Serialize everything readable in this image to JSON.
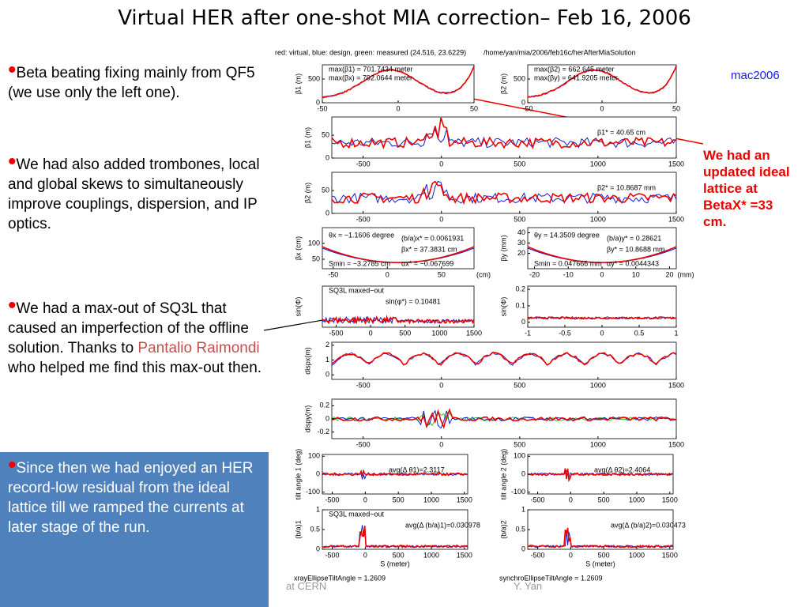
{
  "title": "Virtual HER after one-shot MIA correction– Feb 16, 2006",
  "bullets": [
    {
      "text": "Beta beating fixing mainly from QF5 (we use only the left one)."
    },
    {
      "text": "We had also added trombones, local and global skews to simultaneously improve couplings, dispersion, and IP optics."
    },
    {
      "text": "We had a max-out of SQ3L that caused an imperfection of the offline solution. Thanks to ",
      "name": "Pantalio Raimondi",
      "after": " who helped me find this max-out then."
    }
  ],
  "box_text": "Since then we had enjoyed an HER record-low residual from the ideal lattice till we ramped the currents at later stage of the run.",
  "side_note": "We had an updated ideal lattice at BetaX* =33 cm.",
  "tag": "mac2006",
  "footer": [
    "at CERN",
    "Y. Yan"
  ],
  "figure": {
    "header": "red: virtual, blue: design, green: measured  (24.516, 23.6229)",
    "path": "/home/yan/mia/2006/feb16c/herAfterMiaSolution",
    "panels": [
      {
        "ylabel": "β1 (m)",
        "xlim": [
          -50,
          50
        ],
        "xticks": [
          -50,
          0,
          50
        ],
        "ylim": [
          0,
          800
        ],
        "yticks": [
          0,
          500
        ],
        "notes": [
          "max(β1) = 701.7434 meter",
          "max(βx) = 792.0644 meter"
        ]
      },
      {
        "ylabel": "β2 (m)",
        "xlim": [
          -50,
          50
        ],
        "xticks": [
          -50,
          0,
          50
        ],
        "ylim": [
          0,
          800
        ],
        "yticks": [
          0,
          500
        ],
        "notes": [
          "max(β2) = 662.645 meter",
          "max(βy) = 641.9205 meter"
        ]
      },
      {
        "ylabel": "β1 (m)",
        "xlim": [
          -700,
          1500
        ],
        "xticks": [
          -500,
          0,
          500,
          1000,
          1500
        ],
        "ylim": [
          0,
          90
        ],
        "yticks": [
          0,
          50
        ],
        "notes": [
          "β1* = 40.65 cm"
        ]
      },
      {
        "ylabel": "β2 (m)",
        "xlim": [
          -700,
          1500
        ],
        "xticks": [
          -500,
          0,
          500,
          1000,
          1500
        ],
        "ylim": [
          0,
          90
        ],
        "yticks": [
          0,
          50
        ],
        "notes": [
          "β2* = 10.8687 mm"
        ]
      },
      {
        "ylabel": "βx (cm)",
        "xlim": [
          -60,
          80
        ],
        "xticks": [
          -50,
          0,
          50
        ],
        "xlabel": "(cm)",
        "ylim": [
          20,
          150
        ],
        "yticks": [
          50,
          100
        ],
        "notes": [
          "θx = −1.1606 degree",
          "(b/a)x* = 0.0061931",
          "βx* = 37.3831 cm",
          "Smin = −3.2785 cm",
          "αx* = −0.067699"
        ]
      },
      {
        "ylabel": "βy (mm)",
        "xlim": [
          -22,
          22
        ],
        "xticks": [
          -20,
          -10,
          0,
          10,
          20
        ],
        "xlabel": "(mm)",
        "ylim": [
          5,
          45
        ],
        "yticks": [
          20,
          30,
          40
        ],
        "notes": [
          "θy = 14.3509 degree",
          "(b/a)y* = 0.28621",
          "βy* = 10.8688 mm",
          "Smin = 0.047666 mm",
          "αy* = 0.0044343"
        ]
      },
      {
        "ylabel": "sin(Φ)",
        "xlim": [
          -700,
          1500
        ],
        "xticks": [
          -500,
          0,
          500,
          1000,
          1500
        ],
        "ylim": [
          0,
          0.2
        ],
        "yticks": [],
        "notes": [
          "SQ3L maxed−out",
          "sin(φ*) = 0.10481"
        ]
      },
      {
        "ylabel": "sin(Φ)",
        "xlim": [
          -1,
          1
        ],
        "xticks": [
          -1,
          -0.5,
          0,
          0.5,
          1
        ],
        "ylim": [
          -0.03,
          0.22
        ],
        "yticks": [
          0,
          0.1,
          0.2
        ],
        "notes": []
      },
      {
        "ylabel": "dispx(m)",
        "xlim": [
          -700,
          1500
        ],
        "xticks": [
          -500,
          0,
          500,
          1000,
          1500
        ],
        "ylim": [
          -0.3,
          2.2
        ],
        "yticks": [
          0,
          1,
          2
        ],
        "notes": []
      },
      {
        "ylabel": "dispy(m)",
        "xlim": [
          -700,
          1500
        ],
        "xticks": [
          -500,
          0,
          500,
          1000,
          1500
        ],
        "ylim": [
          -0.3,
          0.3
        ],
        "yticks": [
          -0.2,
          0,
          0.2
        ],
        "notes": []
      },
      {
        "ylabel": "tilt angle 1 (deg)",
        "xlim": [
          -650,
          1550
        ],
        "xticks": [
          -500,
          0,
          500,
          1000,
          1500
        ],
        "ylim": [
          -110,
          110
        ],
        "yticks": [
          -100,
          0,
          100
        ],
        "notes": [
          "avg(Δ θ1)=2.3117"
        ]
      },
      {
        "ylabel": "tilt angle 2 (deg)",
        "xlim": [
          -650,
          1550
        ],
        "xticks": [
          -500,
          0,
          500,
          1000,
          1500
        ],
        "ylim": [
          -110,
          110
        ],
        "yticks": [
          -100,
          0,
          100
        ],
        "notes": [
          "avg(Δ θ2)=2.4064"
        ]
      },
      {
        "ylabel": "(b/a)1",
        "xlim": [
          -650,
          1550
        ],
        "xticks": [
          -500,
          0,
          500,
          1000,
          1500
        ],
        "xlabel": "S (meter)",
        "ylim": [
          0,
          1
        ],
        "yticks": [
          0,
          0.5,
          1
        ],
        "notes": [
          "SQ3L maxed−out",
          "avg(Δ (b/a)1)=0.030978"
        ],
        "caption": "xrayEllipseTiltAngle = 1.2609"
      },
      {
        "ylabel": "(b/a)2",
        "xlim": [
          -650,
          1550
        ],
        "xticks": [
          -500,
          0,
          500,
          1000,
          1500
        ],
        "xlabel": "S (meter)",
        "ylim": [
          0,
          1
        ],
        "yticks": [
          0,
          0.5,
          1
        ],
        "notes": [
          "avg(Δ (b/a)2)=0.030473"
        ],
        "caption": "synchroEllipseTiltAngle = 1.2609"
      }
    ]
  }
}
